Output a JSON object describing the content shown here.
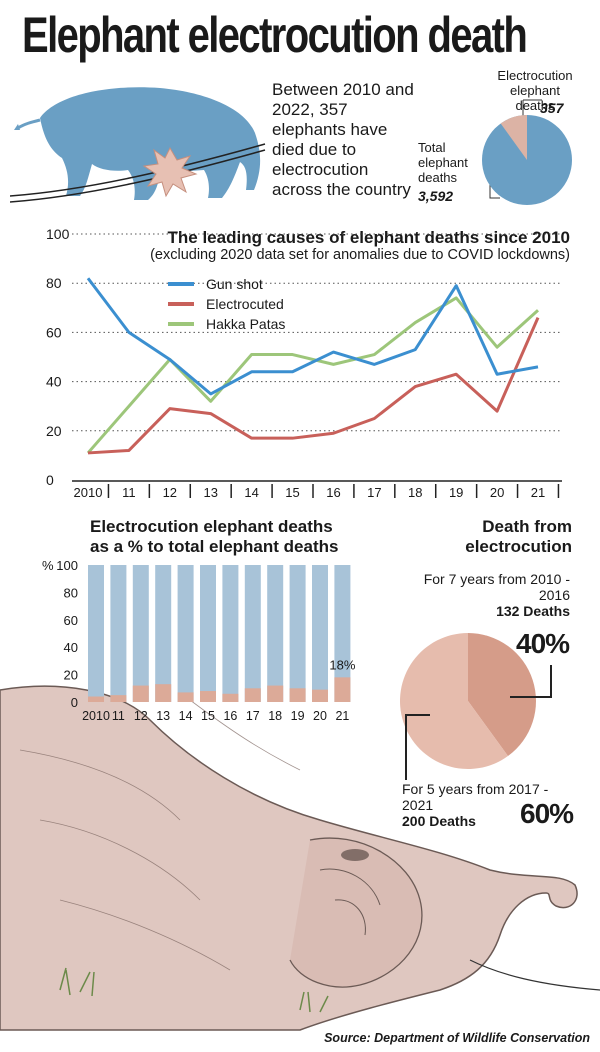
{
  "title": "Elephant electrocution death",
  "intro": {
    "text": "Between 2010 and 2022, 357 elephants have died due to electrocution across the country"
  },
  "pie1": {
    "electro_label": "Electrocution elephant deaths",
    "electro_value": "357",
    "total_label": "Total elephant deaths",
    "total_value": "3,592",
    "colors": {
      "main": "#6a9fc4",
      "slice": "#dcb3a5"
    }
  },
  "chart_data": [
    {
      "type": "line",
      "title": "The leading causes of elephant deaths since 2010",
      "subtitle": "(excluding 2020 data set for anomalies due to COVID lockdowns)",
      "categories": [
        "2010",
        "11",
        "12",
        "13",
        "14",
        "15",
        "16",
        "17",
        "18",
        "19",
        "20",
        "21"
      ],
      "ylim": [
        0,
        100
      ],
      "yticks": [
        0,
        20,
        40,
        60,
        80,
        100
      ],
      "grid": true,
      "legend_position": "top-left",
      "series": [
        {
          "name": "Gun shot",
          "color": "#3b8fd0",
          "values": [
            82,
            60,
            49,
            35,
            44,
            44,
            52,
            47,
            53,
            79,
            43,
            46
          ]
        },
        {
          "name": "Electrocuted",
          "color": "#c8605a",
          "values": [
            11,
            12,
            29,
            27,
            17,
            17,
            19,
            25,
            38,
            43,
            28,
            66
          ]
        },
        {
          "name": "Hakka Patas",
          "color": "#9dc67a",
          "values": [
            11,
            30,
            49,
            32,
            51,
            51,
            47,
            51,
            64,
            74,
            54,
            69
          ]
        }
      ]
    },
    {
      "type": "bar",
      "title": "Electrocution elephant deaths as a % to total elephant deaths",
      "categories": [
        "2010",
        "11",
        "12",
        "13",
        "14",
        "15",
        "16",
        "17",
        "18",
        "19",
        "20",
        "21"
      ],
      "ylabel": "%",
      "ylim": [
        0,
        100
      ],
      "yticks": [
        0,
        20,
        40,
        60,
        80,
        100
      ],
      "values": [
        4,
        5,
        12,
        13,
        7,
        8,
        6,
        10,
        12,
        10,
        9,
        18
      ],
      "annotation": "18%",
      "colors": {
        "total": "#a8c3d8",
        "electro": "#dcaa98"
      }
    },
    {
      "type": "pie",
      "title": "Death from electrocution",
      "slices": [
        {
          "label": "For 7 years from 2010 - 2016",
          "deaths": "132 Deaths",
          "percent_label": "40%",
          "value": 40,
          "color": "#d59c89"
        },
        {
          "label": "For 5 years from 2017 - 2021",
          "deaths": "200 Deaths",
          "percent_label": "60%",
          "value": 60,
          "color": "#e6bcad"
        }
      ]
    }
  ],
  "source": "Source: Department of Wildlife Conservation"
}
